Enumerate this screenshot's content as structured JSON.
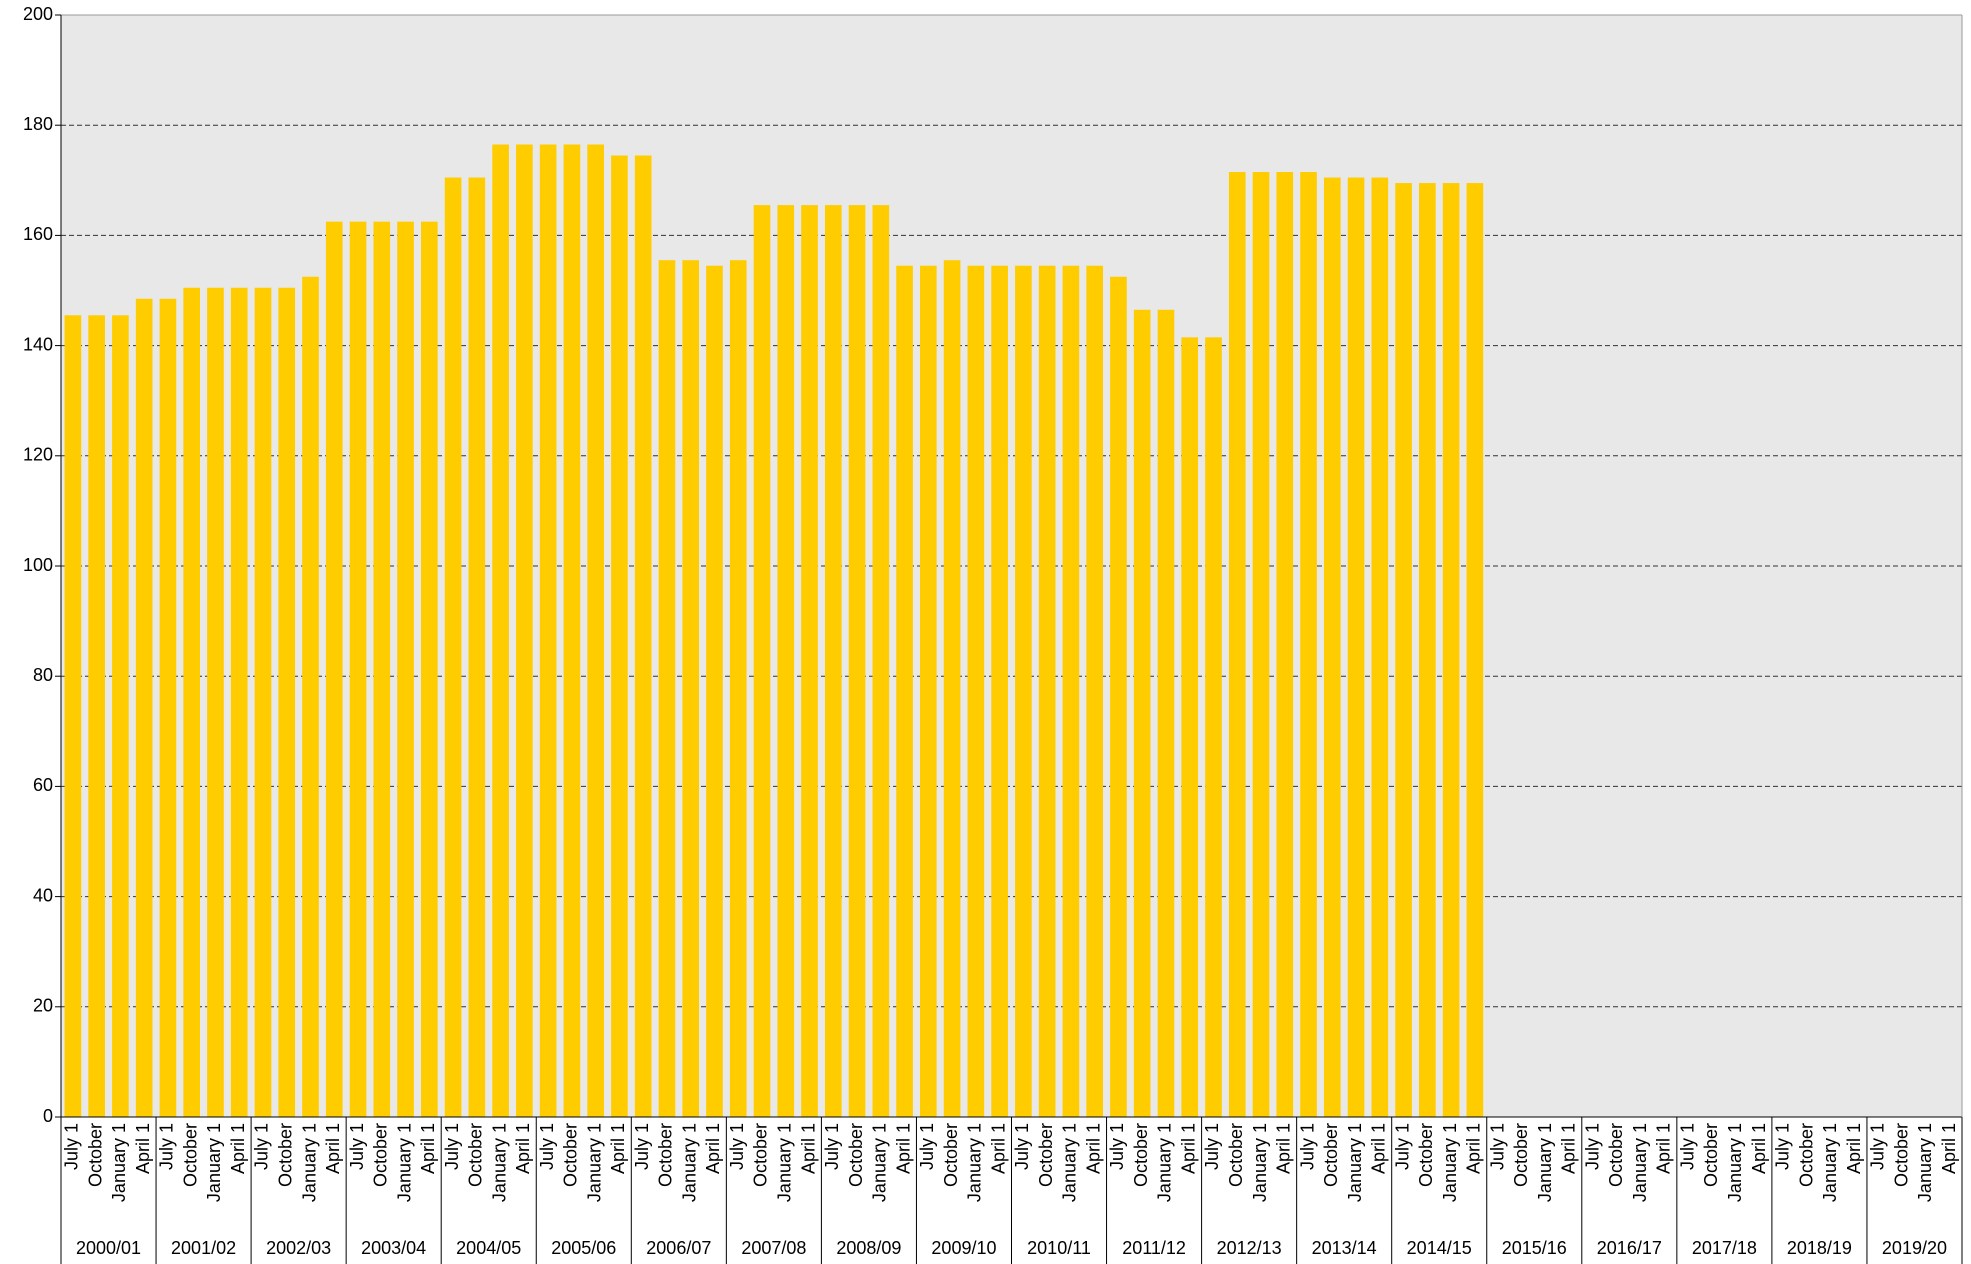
{
  "chart_data": {
    "type": "bar",
    "categories": [
      "July 1",
      "October",
      "January 1",
      "April 1",
      "July 1",
      "October",
      "January 1",
      "April 1",
      "July 1",
      "October",
      "January 1",
      "April 1",
      "July 1",
      "October",
      "January 1",
      "April 1",
      "July 1",
      "October",
      "January 1",
      "April 1",
      "July 1",
      "October",
      "January 1",
      "April 1",
      "July 1",
      "October",
      "January 1",
      "April 1",
      "July 1",
      "October",
      "January 1",
      "April 1",
      "July 1",
      "October",
      "January 1",
      "April 1",
      "July 1",
      "October",
      "January 1",
      "April 1",
      "July 1",
      "October",
      "January 1",
      "April 1",
      "July 1",
      "October",
      "January 1",
      "April 1",
      "July 1",
      "October",
      "January 1",
      "April 1",
      "July 1",
      "October",
      "January 1",
      "April 1",
      "July 1",
      "October",
      "January 1",
      "April 1",
      "July 1",
      "October",
      "January 1",
      "April 1",
      "July 1",
      "October",
      "January 1",
      "April 1",
      "July 1",
      "October",
      "January 1",
      "April 1",
      "July 1",
      "October",
      "January 1",
      "April 1",
      "July 1",
      "October",
      "January 1",
      "April 1"
    ],
    "groups": [
      "2000/01",
      "2001/02",
      "2002/03",
      "2003/04",
      "2004/05",
      "2005/06",
      "2006/07",
      "2007/08",
      "2008/09",
      "2009/10",
      "2010/11",
      "2011/12",
      "2012/13",
      "2013/14",
      "2014/15",
      "2015/16",
      "2016/17",
      "2017/18",
      "2018/19",
      "2019/20"
    ],
    "values": [
      145.5,
      145.5,
      145.5,
      148.5,
      148.5,
      150.5,
      150.5,
      150.5,
      150.5,
      150.5,
      152.5,
      162.5,
      162.5,
      162.5,
      162.5,
      162.5,
      170.5,
      170.5,
      176.5,
      176.5,
      176.5,
      176.5,
      176.5,
      174.5,
      174.5,
      155.5,
      155.5,
      154.5,
      155.5,
      165.5,
      165.5,
      165.5,
      165.5,
      165.5,
      165.5,
      154.5,
      154.5,
      155.5,
      154.5,
      154.5,
      154.5,
      154.5,
      154.5,
      154.5,
      152.5,
      146.5,
      146.5,
      141.5,
      141.5,
      171.5,
      171.5,
      171.5,
      171.5,
      170.5,
      170.5,
      170.5,
      169.5,
      169.5,
      169.5,
      169.5,
      null,
      null,
      null,
      null,
      null,
      null,
      null,
      null,
      null,
      null,
      null,
      null,
      null,
      null,
      null,
      null,
      null,
      null,
      null,
      null
    ],
    "color": "#ffcc00",
    "ylim": [
      0,
      200
    ],
    "yticks": [
      0,
      20,
      40,
      60,
      80,
      100,
      120,
      140,
      160,
      180,
      200
    ],
    "grid": true
  }
}
